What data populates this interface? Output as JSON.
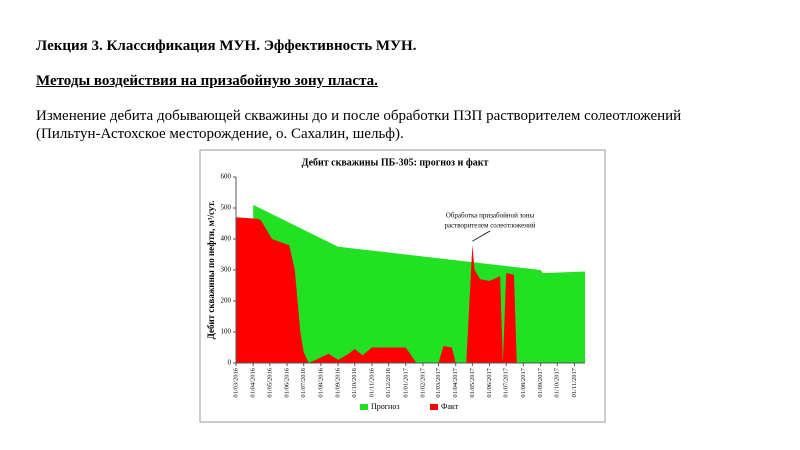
{
  "header": {
    "title": "Лекция 3. Классификация МУН. Эффективность МУН.",
    "subtitle": "Методы воздействия на призабойную зону пласта.",
    "text_lines": [
      "Изменение дебита добывающей скважины до и после обработки ПЗП растворителем солеотложений",
      "(Пильтун-Астохское месторождение, о. Сахалин, шельф)."
    ]
  },
  "chart_data": {
    "type": "area",
    "title": "Дебит скважины ПБ-305: прогноз и факт",
    "y_label": "Дебит скважины по нефти, м³/сут.",
    "annotation": [
      "Обработка призабойной зоны",
      "растворителем солеотложений"
    ],
    "xlim": [
      "01/03/2016",
      "20/11/2017"
    ],
    "xticks": [
      "01/03/2016",
      "01/04/2016",
      "01/05/2016",
      "01/06/2016",
      "01/07/2016",
      "01/08/2016",
      "01/09/2016",
      "01/10/2016",
      "01/11/2016",
      "01/12/2016",
      "01/01/2017",
      "01/02/2017",
      "01/03/2017",
      "01/04/2017",
      "01/05/2017",
      "01/06/2017",
      "01/07/2017",
      "01/08/2017",
      "01/09/2017",
      "01/10/2017",
      "01/11/2017"
    ],
    "ylim": [
      0,
      600
    ],
    "yticks": [
      0,
      100,
      200,
      300,
      400,
      500,
      600
    ],
    "legend": "bottom",
    "series": [
      {
        "name": "Прогноз",
        "color": "#22e022",
        "x": [
          "01/04/2016",
          "01/09/2016",
          "01/01/2017",
          "01/09/2017",
          "05/09/2017",
          "20/11/2017"
        ],
        "values": [
          510,
          375,
          350,
          300,
          290,
          295
        ]
      },
      {
        "name": "Факт",
        "color": "#ff0000",
        "x": [
          "01/03/2016",
          "10/04/2016",
          "15/04/2016",
          "05/05/2016",
          "20/05/2016",
          "05/06/2016",
          "15/06/2016",
          "25/06/2016",
          "01/07/2016",
          "10/07/2016",
          "15/08/2016",
          "01/09/2016",
          "20/09/2016",
          "01/10/2016",
          "15/10/2016",
          "01/11/2016",
          "01/12/2016",
          "01/01/2017",
          "20/01/2017",
          "01/03/2017",
          "10/03/2017",
          "25/03/2017",
          "01/04/2017",
          "20/04/2017",
          "01/05/2017",
          "05/05/2017",
          "15/05/2017",
          "01/06/2017",
          "20/06/2017",
          "25/06/2017",
          "01/07/2017",
          "15/07/2017",
          "20/07/2017"
        ],
        "values": [
          470,
          465,
          460,
          400,
          390,
          380,
          300,
          100,
          35,
          0,
          30,
          10,
          30,
          45,
          25,
          50,
          50,
          50,
          0,
          0,
          55,
          50,
          0,
          0,
          380,
          300,
          270,
          265,
          280,
          0,
          290,
          285,
          0
        ]
      }
    ]
  }
}
